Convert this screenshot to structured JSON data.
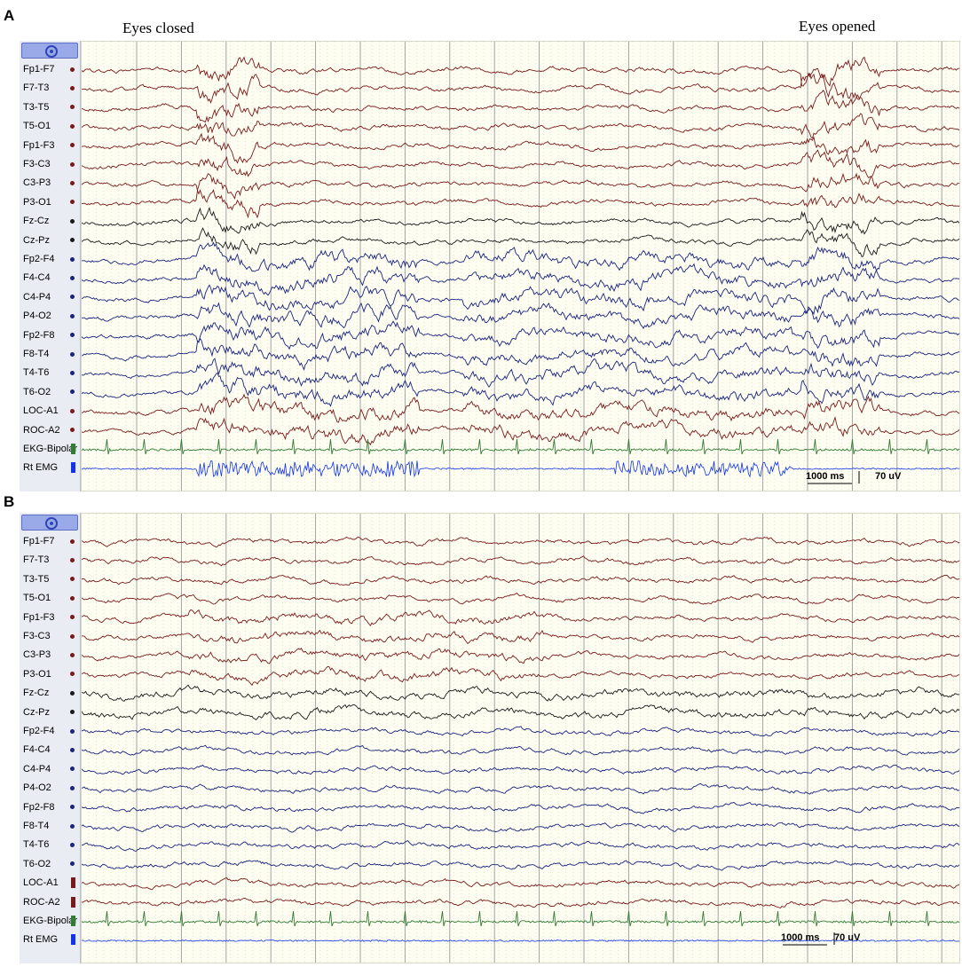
{
  "panels": [
    {
      "letter": "A",
      "annotations": [
        {
          "text": "Eyes closed"
        },
        {
          "text": "Eyes opened"
        }
      ],
      "scale": {
        "time": "1000 ms",
        "amplitude": "70 uV"
      },
      "channels": [
        {
          "label": "Fp1-F7",
          "marker": "dot",
          "color": "#7a1a1a"
        },
        {
          "label": "F7-T3",
          "marker": "dot",
          "color": "#7a1a1a"
        },
        {
          "label": "T3-T5",
          "marker": "dot",
          "color": "#7a1a1a"
        },
        {
          "label": "T5-O1",
          "marker": "dot",
          "color": "#7a1a1a"
        },
        {
          "label": "Fp1-F3",
          "marker": "dot",
          "color": "#7a1a1a"
        },
        {
          "label": "F3-C3",
          "marker": "dot",
          "color": "#7a1a1a"
        },
        {
          "label": "C3-P3",
          "marker": "dot",
          "color": "#7a1a1a"
        },
        {
          "label": "P3-O1",
          "marker": "dot",
          "color": "#7a1a1a"
        },
        {
          "label": "Fz-Cz",
          "marker": "dot",
          "color": "#1a1a1a"
        },
        {
          "label": "Cz-Pz",
          "marker": "dot",
          "color": "#1a1a1a"
        },
        {
          "label": "Fp2-F4",
          "marker": "dot",
          "color": "#1a237e"
        },
        {
          "label": "F4-C4",
          "marker": "dot",
          "color": "#1a237e"
        },
        {
          "label": "C4-P4",
          "marker": "dot",
          "color": "#1a237e"
        },
        {
          "label": "P4-O2",
          "marker": "dot",
          "color": "#1a237e"
        },
        {
          "label": "Fp2-F8",
          "marker": "dot",
          "color": "#1a237e"
        },
        {
          "label": "F8-T4",
          "marker": "dot",
          "color": "#1a237e"
        },
        {
          "label": "T4-T6",
          "marker": "dot",
          "color": "#1a237e"
        },
        {
          "label": "T6-O2",
          "marker": "dot",
          "color": "#1a237e"
        },
        {
          "label": "LOC-A1",
          "marker": "dot",
          "color": "#7a1a1a"
        },
        {
          "label": "ROC-A2",
          "marker": "dot",
          "color": "#7a1a1a"
        },
        {
          "label": "EKG-Bipolar",
          "marker": "bar",
          "color": "#2e7d32"
        },
        {
          "label": "Rt EMG",
          "marker": "bar",
          "color": "#1133ee"
        }
      ]
    },
    {
      "letter": "B",
      "annotations": [],
      "scale": {
        "time": "1000 ms",
        "amplitude": "70 uV"
      },
      "channels": [
        {
          "label": "Fp1-F7",
          "marker": "dot",
          "color": "#7a1a1a"
        },
        {
          "label": "F7-T3",
          "marker": "dot",
          "color": "#7a1a1a"
        },
        {
          "label": "T3-T5",
          "marker": "dot",
          "color": "#7a1a1a"
        },
        {
          "label": "T5-O1",
          "marker": "dot",
          "color": "#7a1a1a"
        },
        {
          "label": "Fp1-F3",
          "marker": "dot",
          "color": "#7a1a1a"
        },
        {
          "label": "F3-C3",
          "marker": "dot",
          "color": "#7a1a1a"
        },
        {
          "label": "C3-P3",
          "marker": "dot",
          "color": "#7a1a1a"
        },
        {
          "label": "P3-O1",
          "marker": "dot",
          "color": "#7a1a1a"
        },
        {
          "label": "Fz-Cz",
          "marker": "dot",
          "color": "#1a1a1a"
        },
        {
          "label": "Cz-Pz",
          "marker": "dot",
          "color": "#1a1a1a"
        },
        {
          "label": "Fp2-F4",
          "marker": "dot",
          "color": "#1a237e"
        },
        {
          "label": "F4-C4",
          "marker": "dot",
          "color": "#1a237e"
        },
        {
          "label": "C4-P4",
          "marker": "dot",
          "color": "#1a237e"
        },
        {
          "label": "P4-O2",
          "marker": "dot",
          "color": "#1a237e"
        },
        {
          "label": "Fp2-F8",
          "marker": "dot",
          "color": "#1a237e"
        },
        {
          "label": "F8-T4",
          "marker": "dot",
          "color": "#1a237e"
        },
        {
          "label": "T4-T6",
          "marker": "dot",
          "color": "#1a237e"
        },
        {
          "label": "T6-O2",
          "marker": "dot",
          "color": "#1a237e"
        },
        {
          "label": "LOC-A1",
          "marker": "bar",
          "color": "#7a1a1a"
        },
        {
          "label": "ROC-A2",
          "marker": "bar",
          "color": "#7a1a1a"
        },
        {
          "label": "EKG-Bipolar",
          "marker": "bar",
          "color": "#2e7d32"
        },
        {
          "label": "Rt EMG",
          "marker": "bar",
          "color": "#1133ee"
        }
      ]
    }
  ],
  "chart_data": [
    {
      "type": "line",
      "panel": "A",
      "series": [
        {
          "name": "Fp1-F7"
        },
        {
          "name": "F7-T3"
        },
        {
          "name": "T3-T5"
        },
        {
          "name": "T5-O1"
        },
        {
          "name": "Fp1-F3"
        },
        {
          "name": "F3-C3"
        },
        {
          "name": "C3-P3"
        },
        {
          "name": "P3-O1"
        },
        {
          "name": "Fz-Cz"
        },
        {
          "name": "Cz-Pz"
        },
        {
          "name": "Fp2-F4"
        },
        {
          "name": "F4-C4"
        },
        {
          "name": "C4-P4"
        },
        {
          "name": "P4-O2"
        },
        {
          "name": "Fp2-F8"
        },
        {
          "name": "F8-T4"
        },
        {
          "name": "T4-T6"
        },
        {
          "name": "T6-O2"
        },
        {
          "name": "LOC-A1"
        },
        {
          "name": "ROC-A2"
        },
        {
          "name": "EKG-Bipolar"
        },
        {
          "name": "Rt EMG"
        }
      ],
      "annotations": [
        "Eyes closed",
        "Eyes opened"
      ],
      "scale_time": "1000 ms",
      "scale_amplitude": "70 uV",
      "grid": true
    },
    {
      "type": "line",
      "panel": "B",
      "series": [
        {
          "name": "Fp1-F7"
        },
        {
          "name": "F7-T3"
        },
        {
          "name": "T3-T5"
        },
        {
          "name": "T5-O1"
        },
        {
          "name": "Fp1-F3"
        },
        {
          "name": "F3-C3"
        },
        {
          "name": "C3-P3"
        },
        {
          "name": "P3-O1"
        },
        {
          "name": "Fz-Cz"
        },
        {
          "name": "Cz-Pz"
        },
        {
          "name": "Fp2-F4"
        },
        {
          "name": "F4-C4"
        },
        {
          "name": "C4-P4"
        },
        {
          "name": "P4-O2"
        },
        {
          "name": "Fp2-F8"
        },
        {
          "name": "F8-T4"
        },
        {
          "name": "T4-T6"
        },
        {
          "name": "T6-O2"
        },
        {
          "name": "LOC-A1"
        },
        {
          "name": "ROC-A2"
        },
        {
          "name": "EKG-Bipolar"
        },
        {
          "name": "Rt EMG"
        }
      ],
      "scale_time": "1000 ms",
      "scale_amplitude": "70 uV",
      "grid": true
    }
  ]
}
